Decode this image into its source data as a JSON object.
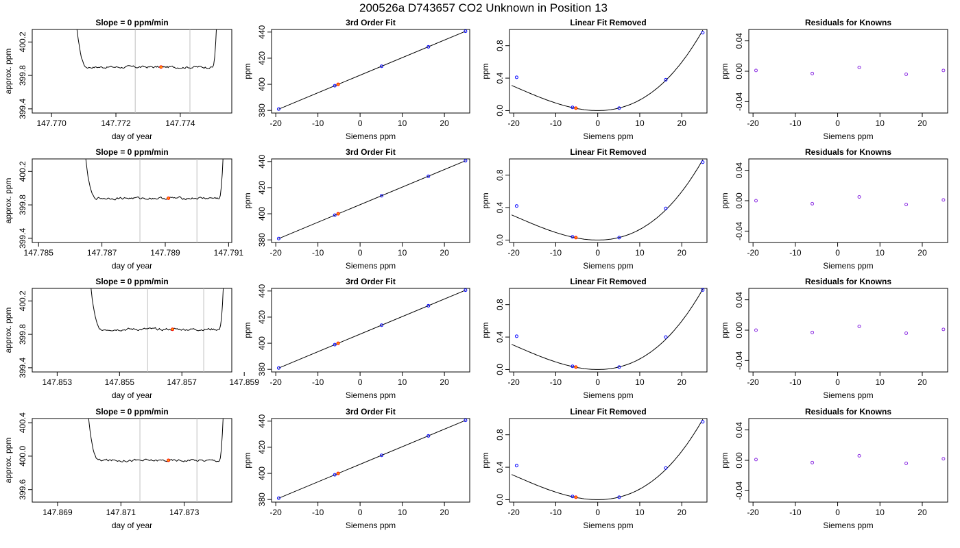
{
  "figure": {
    "title": "200526a     D743657   CO2 Unknown in Position  13"
  },
  "colors": {
    "axis": "#000000",
    "line": "#000000",
    "vline": "#bebebe",
    "known": "#0000ff",
    "unknown": "#ff0000",
    "unknown_fill": "#ffa500",
    "residual": "#8a2be2"
  },
  "chart_data": [
    {
      "id": "r1-trace",
      "row": 1,
      "col": 1,
      "type": "line",
      "title": "Slope =  0  ppm/min",
      "xlabel": "day of year",
      "ylabel": "approx. ppm",
      "xlim": [
        147.7694,
        147.7756
      ],
      "ylim": [
        399.35,
        400.35
      ],
      "xticks": [
        147.77,
        147.772,
        147.774
      ],
      "xticklabels": [
        "147.770",
        "147.772",
        "147.774"
      ],
      "yticks": [
        399.4,
        399.8,
        400.2
      ],
      "yticklabels": [
        "399.4",
        "399.8",
        "400.2"
      ],
      "vlines": [
        147.7726,
        147.7743
      ],
      "trace": {
        "x_start": 147.7706,
        "x_end": 147.7752,
        "rise_left": 147.7711,
        "rise_right": 147.775,
        "level": 399.9,
        "start": 401.2,
        "end": 401.2,
        "noise": 0.012
      },
      "unknown_point": {
        "x": 147.7734,
        "y": 399.9
      }
    },
    {
      "id": "r1-fit",
      "row": 1,
      "col": 2,
      "type": "scatter",
      "title": "3rd Order Fit",
      "xlabel": "Siemens ppm",
      "ylabel": "ppm",
      "xlim": [
        -21,
        26
      ],
      "ylim": [
        378,
        442
      ],
      "xticks": [
        -20,
        -10,
        0,
        10,
        20
      ],
      "xticklabels": [
        "-20",
        "-10",
        "0",
        "10",
        "20"
      ],
      "yticks": [
        380,
        400,
        420,
        440
      ],
      "yticklabels": [
        "380",
        "400",
        "420",
        "440"
      ],
      "fit_line": {
        "x": [
          -19.3,
          25.0
        ],
        "y": [
          381.0,
          440.6
        ]
      },
      "knowns": {
        "x": [
          -19.3,
          -6.0,
          5.1,
          16.2,
          25.0
        ],
        "y": [
          381.0,
          398.9,
          413.8,
          428.7,
          440.6
        ]
      },
      "unknown": {
        "x": -5.2,
        "y": 400.0
      }
    },
    {
      "id": "r1-lin",
      "row": 1,
      "col": 3,
      "type": "scatter",
      "title": "Linear Fit Removed",
      "xlabel": "Siemens ppm",
      "ylabel": "ppm",
      "xlim": [
        -21,
        26
      ],
      "ylim": [
        -0.03,
        1.0
      ],
      "xticks": [
        -20,
        -10,
        0,
        10,
        20
      ],
      "xticklabels": [
        "-20",
        "-10",
        "0",
        "10",
        "20"
      ],
      "yticks": [
        0.0,
        0.4,
        0.8
      ],
      "yticklabels": [
        "0.0",
        "0.4",
        "0.8"
      ],
      "curve": {
        "x_min": -20.5,
        "x_max": 25.0,
        "coef": [
          0,
          0,
          0.00112,
          1.86e-05
        ]
      },
      "knowns": {
        "x": [
          -19.3,
          -6.0,
          5.1,
          16.2,
          25.0
        ],
        "y": [
          0.41,
          0.04,
          0.03,
          0.38,
          0.96
        ]
      },
      "unknown": {
        "x": -5.2,
        "y": 0.03
      }
    },
    {
      "id": "r1-res",
      "row": 1,
      "col": 4,
      "type": "scatter",
      "title": "Residuals for Knowns",
      "xlabel": "Siemens ppm",
      "ylabel": "ppm",
      "xlim": [
        -21,
        26
      ],
      "ylim": [
        -0.055,
        0.055
      ],
      "xticks": [
        -20,
        -10,
        0,
        10,
        20
      ],
      "xticklabels": [
        "-20",
        "-10",
        "0",
        "10",
        "20"
      ],
      "yticks": [
        -0.04,
        0.0,
        0.04
      ],
      "yticklabels": [
        "-0.04",
        "0.00",
        "0.04"
      ],
      "residuals": {
        "x": [
          -19.3,
          -6.0,
          5.1,
          16.2,
          25.0
        ],
        "y": [
          0.001,
          -0.003,
          0.005,
          -0.004,
          0.001
        ]
      }
    },
    {
      "id": "r2-trace",
      "row": 2,
      "col": 1,
      "type": "line",
      "title": "Slope =  0  ppm/min",
      "xlabel": "day of year",
      "ylabel": "approx. ppm",
      "xlim": [
        147.7848,
        147.7911
      ],
      "ylim": [
        399.35,
        400.35
      ],
      "xticks": [
        147.785,
        147.787,
        147.789,
        147.791
      ],
      "xticklabels": [
        "147.785",
        "147.787",
        "147.789",
        "147.791"
      ],
      "yticks": [
        399.4,
        399.8,
        400.2
      ],
      "yticklabels": [
        "399.4",
        "399.8",
        "400.2"
      ],
      "vlines": [
        147.7882,
        147.79
      ],
      "trace": {
        "x_start": 147.7863,
        "x_end": 147.7909,
        "rise_left": 147.7868,
        "rise_right": 147.7907,
        "level": 399.88,
        "start": 401.2,
        "end": 401.2,
        "noise": 0.012
      },
      "unknown_point": {
        "x": 147.7891,
        "y": 399.88
      }
    },
    {
      "id": "r2-fit",
      "row": 2,
      "col": 2,
      "type": "scatter",
      "title": "3rd Order Fit",
      "xlabel": "Siemens ppm",
      "ylabel": "ppm",
      "xlim": [
        -21,
        26
      ],
      "ylim": [
        378,
        442
      ],
      "xticks": [
        -20,
        -10,
        0,
        10,
        20
      ],
      "xticklabels": [
        "-20",
        "-10",
        "0",
        "10",
        "20"
      ],
      "yticks": [
        380,
        400,
        420,
        440
      ],
      "yticklabels": [
        "380",
        "400",
        "420",
        "440"
      ],
      "fit_line": {
        "x": [
          -19.3,
          25.0
        ],
        "y": [
          381.0,
          440.6
        ]
      },
      "knowns": {
        "x": [
          -19.3,
          -6.0,
          5.1,
          16.2,
          25.0
        ],
        "y": [
          381.0,
          398.9,
          413.8,
          428.7,
          440.6
        ]
      },
      "unknown": {
        "x": -5.2,
        "y": 400.0
      }
    },
    {
      "id": "r2-lin",
      "row": 2,
      "col": 3,
      "type": "scatter",
      "title": "Linear Fit Removed",
      "xlabel": "Siemens ppm",
      "ylabel": "ppm",
      "xlim": [
        -21,
        26
      ],
      "ylim": [
        -0.03,
        1.0
      ],
      "xticks": [
        -20,
        -10,
        0,
        10,
        20
      ],
      "xticklabels": [
        "-20",
        "-10",
        "0",
        "10",
        "20"
      ],
      "yticks": [
        0.0,
        0.4,
        0.8
      ],
      "yticklabels": [
        "0.0",
        "0.4",
        "0.8"
      ],
      "curve": {
        "x_min": -20.5,
        "x_max": 25.0,
        "coef": [
          0,
          0,
          0.00112,
          1.86e-05
        ]
      },
      "knowns": {
        "x": [
          -19.3,
          -6.0,
          5.1,
          16.2,
          25.0
        ],
        "y": [
          0.42,
          0.04,
          0.03,
          0.39,
          0.96
        ]
      },
      "unknown": {
        "x": -5.2,
        "y": 0.03
      }
    },
    {
      "id": "r2-res",
      "row": 2,
      "col": 4,
      "type": "scatter",
      "title": "Residuals for Knowns",
      "xlabel": "Siemens ppm",
      "ylabel": "ppm",
      "xlim": [
        -21,
        26
      ],
      "ylim": [
        -0.055,
        0.055
      ],
      "xticks": [
        -20,
        -10,
        0,
        10,
        20
      ],
      "xticklabels": [
        "-20",
        "-10",
        "0",
        "10",
        "20"
      ],
      "yticks": [
        -0.04,
        0.0,
        0.04
      ],
      "yticklabels": [
        "-0.04",
        "0.00",
        "0.04"
      ],
      "residuals": {
        "x": [
          -19.3,
          -6.0,
          5.1,
          16.2,
          25.0
        ],
        "y": [
          0.0,
          -0.004,
          0.005,
          -0.005,
          0.001
        ]
      }
    },
    {
      "id": "r3-trace",
      "row": 3,
      "col": 1,
      "type": "line",
      "title": "Slope =  0  ppm/min",
      "xlabel": "day of year",
      "ylabel": "approx. ppm",
      "xlim": [
        147.8522,
        147.8586
      ],
      "ylim": [
        399.35,
        400.35
      ],
      "xticks": [
        147.853,
        147.855,
        147.857,
        147.859
      ],
      "xticklabels": [
        "147.853",
        "147.855",
        "147.857",
        "147.859"
      ],
      "yticks": [
        399.4,
        399.8,
        400.2
      ],
      "yticklabels": [
        "399.4",
        "399.8",
        "400.2"
      ],
      "vlines": [
        147.8559,
        147.8577
      ],
      "trace": {
        "x_start": 147.8539,
        "x_end": 147.8584,
        "rise_left": 147.8544,
        "rise_right": 147.8582,
        "level": 399.86,
        "start": 401.2,
        "end": 401.2,
        "noise": 0.012
      },
      "unknown_point": {
        "x": 147.8567,
        "y": 399.86
      }
    },
    {
      "id": "r3-fit",
      "row": 3,
      "col": 2,
      "type": "scatter",
      "title": "3rd Order Fit",
      "xlabel": "Siemens ppm",
      "ylabel": "ppm",
      "xlim": [
        -21,
        26
      ],
      "ylim": [
        378,
        442
      ],
      "xticks": [
        -20,
        -10,
        0,
        10,
        20
      ],
      "xticklabels": [
        "-20",
        "-10",
        "0",
        "10",
        "20"
      ],
      "yticks": [
        380,
        400,
        420,
        440
      ],
      "yticklabels": [
        "380",
        "400",
        "420",
        "440"
      ],
      "fit_line": {
        "x": [
          -19.3,
          25.0
        ],
        "y": [
          381.0,
          440.6
        ]
      },
      "knowns": {
        "x": [
          -19.3,
          -6.0,
          5.1,
          16.2,
          25.0
        ],
        "y": [
          381.0,
          398.9,
          413.8,
          428.7,
          440.6
        ]
      },
      "unknown": {
        "x": -5.2,
        "y": 400.0
      }
    },
    {
      "id": "r3-lin",
      "row": 3,
      "col": 3,
      "type": "scatter",
      "title": "Linear Fit Removed",
      "xlabel": "Siemens ppm",
      "ylabel": "ppm",
      "xlim": [
        -21,
        26
      ],
      "ylim": [
        -0.03,
        1.0
      ],
      "xticks": [
        -20,
        -10,
        0,
        10,
        20
      ],
      "xticklabels": [
        "-20",
        "-10",
        "0",
        "10",
        "20"
      ],
      "yticks": [
        0.0,
        0.4,
        0.8
      ],
      "yticklabels": [
        "0.0",
        "0.4",
        "0.8"
      ],
      "curve": {
        "x_min": -20.5,
        "x_max": 25.0,
        "coef": [
          0,
          0,
          0.00112,
          1.86e-05
        ]
      },
      "knowns": {
        "x": [
          -19.3,
          -6.0,
          5.1,
          16.2,
          25.0
        ],
        "y": [
          0.41,
          0.04,
          0.03,
          0.4,
          0.98
        ]
      },
      "unknown": {
        "x": -5.2,
        "y": 0.03
      }
    },
    {
      "id": "r3-res",
      "row": 3,
      "col": 4,
      "type": "scatter",
      "title": "Residuals for Knowns",
      "xlabel": "Siemens ppm",
      "ylabel": "ppm",
      "xlim": [
        -21,
        26
      ],
      "ylim": [
        -0.055,
        0.055
      ],
      "xticks": [
        -20,
        -10,
        0,
        10,
        20
      ],
      "xticklabels": [
        "-20",
        "-10",
        "0",
        "10",
        "20"
      ],
      "yticks": [
        -0.04,
        0.0,
        0.04
      ],
      "yticklabels": [
        "-0.04",
        "0.00",
        "0.04"
      ],
      "residuals": {
        "x": [
          -19.3,
          -6.0,
          5.1,
          16.2,
          25.0
        ],
        "y": [
          0.0,
          -0.003,
          0.005,
          -0.004,
          0.001
        ]
      }
    },
    {
      "id": "r4-trace",
      "row": 4,
      "col": 1,
      "type": "line",
      "title": "Slope =  0  ppm/min",
      "xlabel": "day of year",
      "ylabel": "approx. ppm",
      "xlim": [
        147.8682,
        147.8745
      ],
      "ylim": [
        399.45,
        400.45
      ],
      "xticks": [
        147.869,
        147.871,
        147.873
      ],
      "xticklabels": [
        "147.869",
        "147.871",
        "147.873"
      ],
      "yticks": [
        399.6,
        400.0,
        400.4
      ],
      "yticklabels": [
        "399.6",
        "400.0",
        "400.4"
      ],
      "vlines": [
        147.8716,
        147.8734
      ],
      "trace": {
        "x_start": 147.8698,
        "x_end": 147.8743,
        "rise_left": 147.8703,
        "rise_right": 147.8741,
        "level": 399.95,
        "start": 401.3,
        "end": 401.3,
        "noise": 0.012
      },
      "unknown_point": {
        "x": 147.8725,
        "y": 399.95
      }
    },
    {
      "id": "r4-fit",
      "row": 4,
      "col": 2,
      "type": "scatter",
      "title": "3rd Order Fit",
      "xlabel": "Siemens ppm",
      "ylabel": "ppm",
      "xlim": [
        -21,
        26
      ],
      "ylim": [
        378,
        442
      ],
      "xticks": [
        -20,
        -10,
        0,
        10,
        20
      ],
      "xticklabels": [
        "-20",
        "-10",
        "0",
        "10",
        "20"
      ],
      "yticks": [
        380,
        400,
        420,
        440
      ],
      "yticklabels": [
        "380",
        "400",
        "420",
        "440"
      ],
      "fit_line": {
        "x": [
          -19.3,
          25.0
        ],
        "y": [
          381.0,
          440.6
        ]
      },
      "knowns": {
        "x": [
          -19.3,
          -6.0,
          5.1,
          16.2,
          25.0
        ],
        "y": [
          381.0,
          398.9,
          413.8,
          428.7,
          440.6
        ]
      },
      "unknown": {
        "x": -5.2,
        "y": 400.0
      }
    },
    {
      "id": "r4-lin",
      "row": 4,
      "col": 3,
      "type": "scatter",
      "title": "Linear Fit Removed",
      "xlabel": "Siemens ppm",
      "ylabel": "ppm",
      "xlim": [
        -21,
        26
      ],
      "ylim": [
        -0.03,
        1.0
      ],
      "xticks": [
        -20,
        -10,
        0,
        10,
        20
      ],
      "xticklabels": [
        "-20",
        "-10",
        "0",
        "10",
        "20"
      ],
      "yticks": [
        0.0,
        0.4,
        0.8
      ],
      "yticklabels": [
        "0.0",
        "0.4",
        "0.8"
      ],
      "curve": {
        "x_min": -20.5,
        "x_max": 25.0,
        "coef": [
          0,
          0,
          0.00112,
          1.86e-05
        ]
      },
      "knowns": {
        "x": [
          -19.3,
          -6.0,
          5.1,
          16.2,
          25.0
        ],
        "y": [
          0.42,
          0.04,
          0.03,
          0.39,
          0.96
        ]
      },
      "unknown": {
        "x": -5.2,
        "y": 0.03
      }
    },
    {
      "id": "r4-res",
      "row": 4,
      "col": 4,
      "type": "scatter",
      "title": "Residuals for Knowns",
      "xlabel": "Siemens ppm",
      "ylabel": "ppm",
      "xlim": [
        -21,
        26
      ],
      "ylim": [
        -0.055,
        0.055
      ],
      "xticks": [
        -20,
        -10,
        0,
        10,
        20
      ],
      "xticklabels": [
        "-20",
        "-10",
        "0",
        "10",
        "20"
      ],
      "yticks": [
        -0.04,
        0.0,
        0.04
      ],
      "yticklabels": [
        "-0.04",
        "0.00",
        "0.04"
      ],
      "residuals": {
        "x": [
          -19.3,
          -6.0,
          5.1,
          16.2,
          25.0
        ],
        "y": [
          0.001,
          -0.003,
          0.006,
          -0.004,
          0.002
        ]
      }
    }
  ]
}
